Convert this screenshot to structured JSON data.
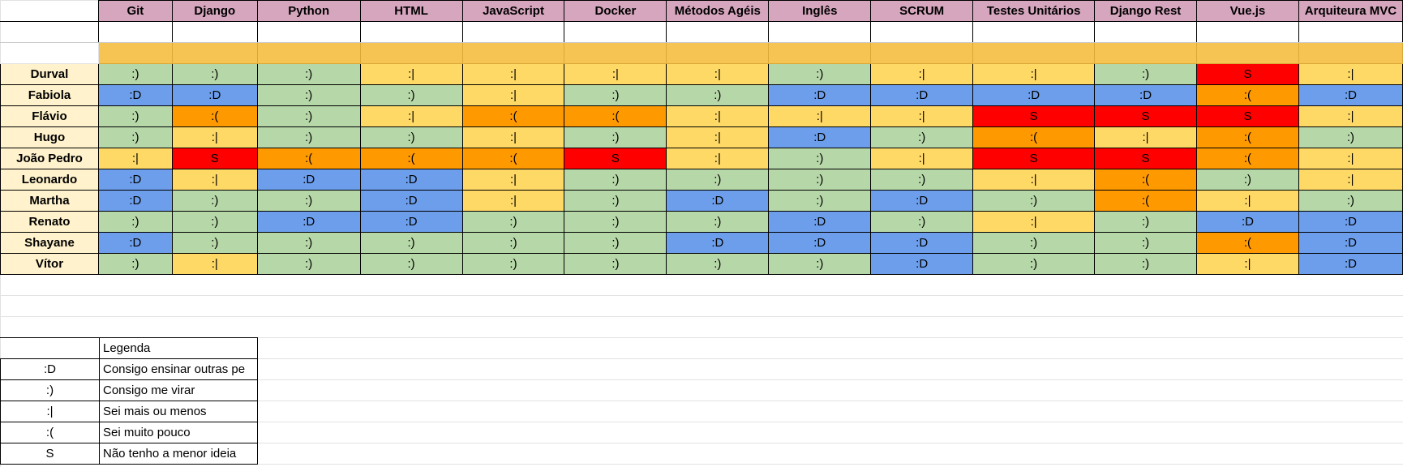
{
  "skills": [
    "Git",
    "Django",
    "Python",
    "HTML",
    "JavaScript",
    "Docker",
    "Métodos Agéis",
    "Inglês",
    "SCRUM",
    "Testes Unitários",
    "Django Rest",
    "Vue.js",
    "Arquiteura MVC"
  ],
  "people": [
    {
      "name": "Durval",
      "levels": [
        ":)",
        ":)",
        ":)",
        ":|",
        ":|",
        ":|",
        ":|",
        ":)",
        ":|",
        ":|",
        ":)",
        "S",
        ":|"
      ]
    },
    {
      "name": "Fabiola",
      "levels": [
        ":D",
        ":D",
        ":)",
        ":)",
        ":|",
        ":)",
        ":)",
        ":D",
        ":D",
        ":D",
        ":D",
        ":(",
        ":D"
      ]
    },
    {
      "name": "Flávio",
      "levels": [
        ":)",
        ":(",
        ":)",
        ":|",
        ":(",
        ":(",
        ":|",
        ":|",
        ":|",
        "S",
        "S",
        "S",
        ":|"
      ]
    },
    {
      "name": "Hugo",
      "levels": [
        ":)",
        ":|",
        ":)",
        ":)",
        ":|",
        ":)",
        ":|",
        ":D",
        ":)",
        ":(",
        ":|",
        ":(",
        ":)"
      ]
    },
    {
      "name": "João Pedro",
      "levels": [
        ":|",
        "S",
        ":(",
        ":(",
        ":(",
        "S",
        ":|",
        ":)",
        ":|",
        "S",
        "S",
        ":(",
        ":|"
      ]
    },
    {
      "name": "Leonardo",
      "levels": [
        ":D",
        ":|",
        ":D",
        ":D",
        ":|",
        ":)",
        ":)",
        ":)",
        ":)",
        ":|",
        ":(",
        ":)",
        ":|"
      ]
    },
    {
      "name": "Martha",
      "levels": [
        ":D",
        ":)",
        ":)",
        ":D",
        ":|",
        ":)",
        ":D",
        ":)",
        ":D",
        ":)",
        ":(",
        ":|",
        ":)"
      ]
    },
    {
      "name": "Renato",
      "levels": [
        ":)",
        ":)",
        ":D",
        ":D",
        ":)",
        ":)",
        ":)",
        ":D",
        ":)",
        ":|",
        ":)",
        ":D",
        ":D"
      ]
    },
    {
      "name": "Shayane",
      "levels": [
        ":D",
        ":)",
        ":)",
        ":)",
        ":)",
        ":)",
        ":D",
        ":D",
        ":D",
        ":)",
        ":)",
        ":(",
        ":D"
      ]
    },
    {
      "name": "Vítor",
      "levels": [
        ":)",
        ":|",
        ":)",
        ":)",
        ":)",
        ":)",
        ":)",
        ":)",
        ":D",
        ":)",
        ":)",
        ":|",
        ":D"
      ]
    }
  ],
  "level_colors": {
    ":D": "#6d9eeb",
    ":)": "#b6d7a8",
    ":|": "#ffd966",
    ":(": "#ff9900",
    "S": "#ff0000"
  },
  "legend": {
    "title": "Legenda",
    "items": [
      {
        "symbol": ":D",
        "label": "Consigo ensinar outras pe",
        "color": "#6d9eeb"
      },
      {
        "symbol": ":)",
        "label": "Consigo me virar",
        "color": "#b6d7a8"
      },
      {
        "symbol": ":|",
        "label": "Sei mais ou menos",
        "color": "#ffd966"
      },
      {
        "symbol": ":(",
        "label": "Sei muito pouco",
        "color": "#ff9900"
      },
      {
        "symbol": "S",
        "label": "Não tenho a menor ideia",
        "color": "#ff0000"
      }
    ]
  }
}
